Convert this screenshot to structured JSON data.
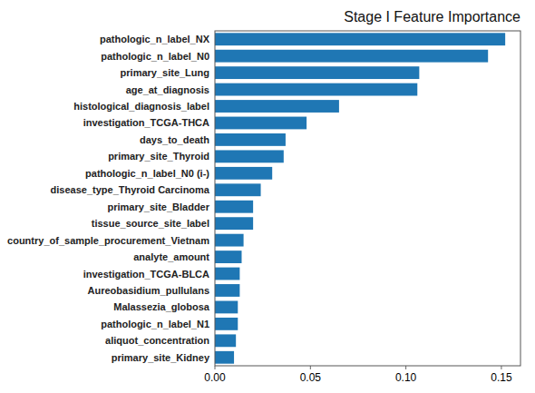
{
  "chart_data": {
    "type": "bar",
    "orientation": "horizontal",
    "title": "Stage I Feature Importance",
    "categories": [
      "pathologic_n_label_NX",
      "pathologic_n_label_N0",
      "primary_site_Lung",
      "age_at_diagnosis",
      "histological_diagnosis_label",
      "investigation_TCGA-THCA",
      "days_to_death",
      "primary_site_Thyroid",
      "pathologic_n_label_N0 (i-)",
      "disease_type_Thyroid Carcinoma",
      "primary_site_Bladder",
      "tissue_source_site_label",
      "country_of_sample_procurement_Vietnam",
      "analyte_amount",
      "investigation_TCGA-BLCA",
      "Aureobasidium_pullulans",
      "Malassezia_globosa",
      "pathologic_n_label_N1",
      "aliquot_concentration",
      "primary_site_Kidney"
    ],
    "values": [
      0.152,
      0.143,
      0.107,
      0.106,
      0.065,
      0.048,
      0.037,
      0.036,
      0.03,
      0.024,
      0.02,
      0.02,
      0.015,
      0.014,
      0.013,
      0.013,
      0.012,
      0.012,
      0.011,
      0.01
    ],
    "color": "#1f77b4",
    "xlim": [
      0,
      0.16
    ],
    "xticks": [
      {
        "value": 0,
        "label": "0.00"
      },
      0.05,
      {
        "value": 0.1,
        "label": "0.10"
      },
      0.15
    ]
  }
}
